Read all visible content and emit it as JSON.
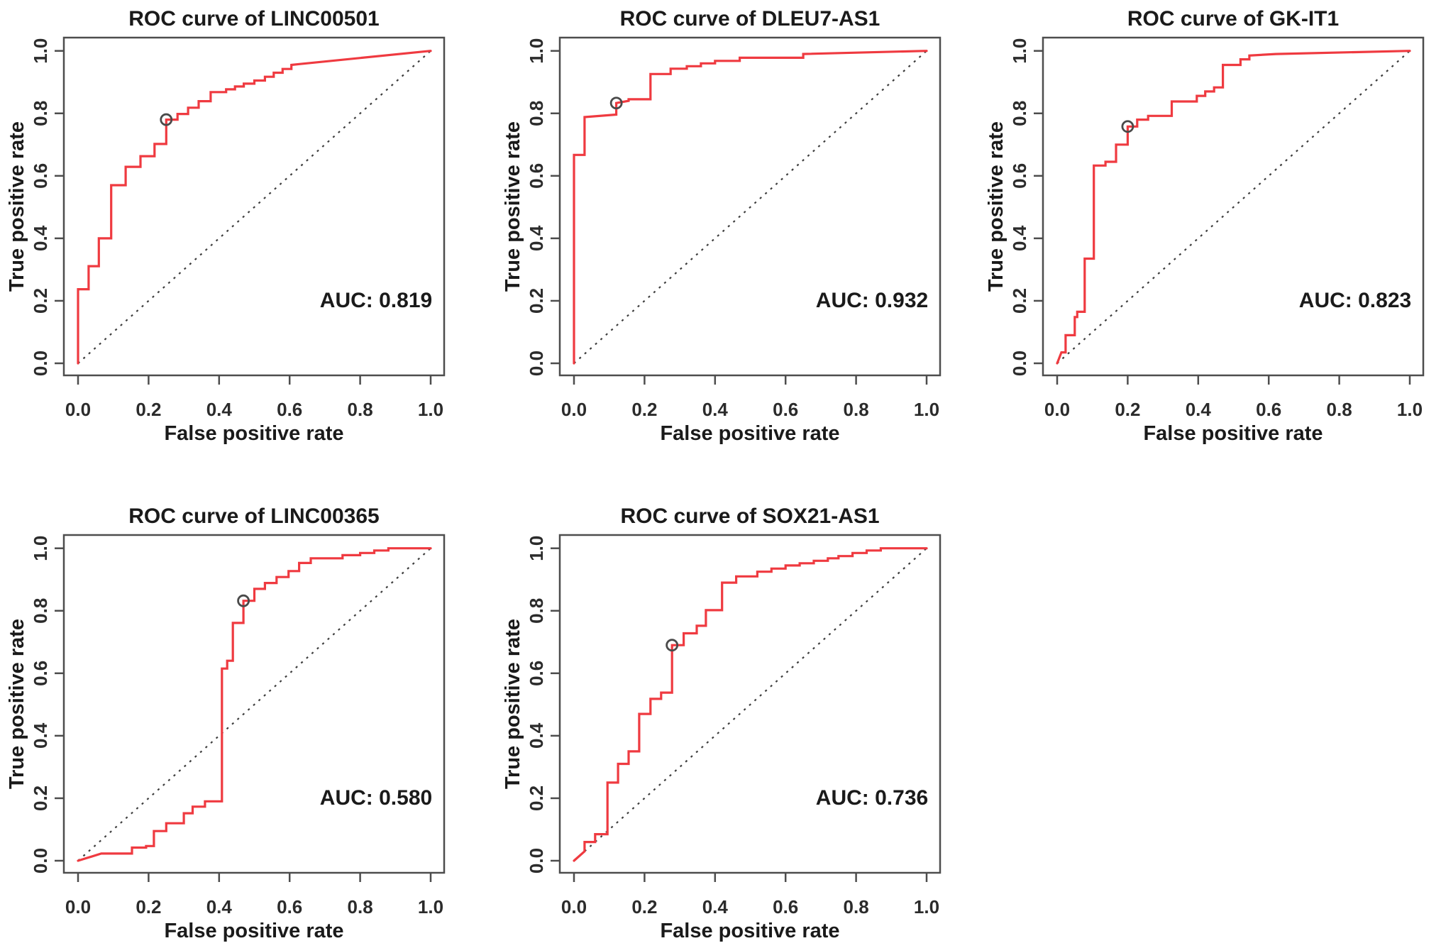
{
  "figure": {
    "description": "Five ROC curve panels arranged in a 2x3 grid (3 top, 2 bottom)",
    "background": "#ffffff",
    "colors": {
      "curve": "#ef3a40",
      "diagonal": "#3d3d3d",
      "frame": "#4d4d4d",
      "marker": "#4a4a4a",
      "text": "#1a1a1a",
      "tick_text": "#2b2b2b"
    }
  },
  "chart_data": [
    {
      "type": "line",
      "subtype": "roc",
      "row": 0,
      "col": 0,
      "title": "ROC curve of LINC00501",
      "xlabel": "False positive rate",
      "ylabel": "True positive rate",
      "auc": 0.819,
      "auc_label": "AUC: 0.819",
      "xlim": [
        0,
        1
      ],
      "ylim": [
        0,
        1
      ],
      "x_ticks": [
        "0.0",
        "0.2",
        "0.4",
        "0.6",
        "0.8",
        "1.0"
      ],
      "y_ticks": [
        "0.0",
        "0.2",
        "0.4",
        "0.6",
        "0.8",
        "1.0"
      ],
      "grid": false,
      "diagonal_reference": true,
      "cutoff_point": [
        0.25,
        0.78
      ],
      "points": [
        [
          0,
          0
        ],
        [
          0,
          0.237
        ],
        [
          0.03,
          0.237
        ],
        [
          0.03,
          0.311
        ],
        [
          0.059,
          0.311
        ],
        [
          0.059,
          0.4
        ],
        [
          0.094,
          0.4
        ],
        [
          0.094,
          0.57
        ],
        [
          0.135,
          0.57
        ],
        [
          0.135,
          0.629
        ],
        [
          0.177,
          0.629
        ],
        [
          0.177,
          0.663
        ],
        [
          0.217,
          0.663
        ],
        [
          0.217,
          0.702
        ],
        [
          0.25,
          0.702
        ],
        [
          0.25,
          0.78
        ],
        [
          0.282,
          0.78
        ],
        [
          0.282,
          0.798
        ],
        [
          0.312,
          0.798
        ],
        [
          0.312,
          0.818
        ],
        [
          0.342,
          0.818
        ],
        [
          0.342,
          0.839
        ],
        [
          0.376,
          0.839
        ],
        [
          0.376,
          0.868
        ],
        [
          0.42,
          0.868
        ],
        [
          0.42,
          0.877
        ],
        [
          0.445,
          0.877
        ],
        [
          0.445,
          0.886
        ],
        [
          0.47,
          0.886
        ],
        [
          0.47,
          0.895
        ],
        [
          0.5,
          0.895
        ],
        [
          0.5,
          0.905
        ],
        [
          0.53,
          0.905
        ],
        [
          0.53,
          0.917
        ],
        [
          0.555,
          0.917
        ],
        [
          0.555,
          0.93
        ],
        [
          0.58,
          0.93
        ],
        [
          0.58,
          0.942
        ],
        [
          0.605,
          0.942
        ],
        [
          0.605,
          0.955
        ],
        [
          0.63,
          0.958
        ],
        [
          1,
          1
        ]
      ]
    },
    {
      "type": "line",
      "subtype": "roc",
      "row": 0,
      "col": 1,
      "title": "ROC curve of DLEU7-AS1",
      "xlabel": "False positive rate",
      "ylabel": "True positive rate",
      "auc": 0.932,
      "auc_label": "AUC: 0.932",
      "xlim": [
        0,
        1
      ],
      "ylim": [
        0,
        1
      ],
      "x_ticks": [
        "0.0",
        "0.2",
        "0.4",
        "0.6",
        "0.8",
        "1.0"
      ],
      "y_ticks": [
        "0.0",
        "0.2",
        "0.4",
        "0.6",
        "0.8",
        "1.0"
      ],
      "grid": false,
      "diagonal_reference": true,
      "cutoff_point": [
        0.12,
        0.833
      ],
      "points": [
        [
          0,
          0
        ],
        [
          0,
          0.667
        ],
        [
          0.03,
          0.667
        ],
        [
          0.03,
          0.788
        ],
        [
          0.12,
          0.796
        ],
        [
          0.12,
          0.833
        ],
        [
          0.155,
          0.84
        ],
        [
          0.155,
          0.845
        ],
        [
          0.217,
          0.845
        ],
        [
          0.217,
          0.926
        ],
        [
          0.274,
          0.926
        ],
        [
          0.274,
          0.943
        ],
        [
          0.32,
          0.943
        ],
        [
          0.32,
          0.951
        ],
        [
          0.36,
          0.951
        ],
        [
          0.36,
          0.96
        ],
        [
          0.4,
          0.96
        ],
        [
          0.4,
          0.968
        ],
        [
          0.47,
          0.968
        ],
        [
          0.47,
          0.978
        ],
        [
          0.65,
          0.978
        ],
        [
          0.65,
          0.99
        ],
        [
          1,
          1
        ]
      ]
    },
    {
      "type": "line",
      "subtype": "roc",
      "row": 0,
      "col": 2,
      "title": "ROC curve of GK-IT1",
      "xlabel": "False positive rate",
      "ylabel": "True positive rate",
      "auc": 0.823,
      "auc_label": "AUC: 0.823",
      "xlim": [
        0,
        1
      ],
      "ylim": [
        0,
        1
      ],
      "x_ticks": [
        "0.0",
        "0.2",
        "0.4",
        "0.6",
        "0.8",
        "1.0"
      ],
      "y_ticks": [
        "0.0",
        "0.2",
        "0.4",
        "0.6",
        "0.8",
        "1.0"
      ],
      "grid": false,
      "diagonal_reference": true,
      "cutoff_point": [
        0.2,
        0.758
      ],
      "points": [
        [
          0,
          0
        ],
        [
          0.012,
          0.035
        ],
        [
          0.024,
          0.035
        ],
        [
          0.024,
          0.09
        ],
        [
          0.05,
          0.09
        ],
        [
          0.05,
          0.148
        ],
        [
          0.057,
          0.148
        ],
        [
          0.057,
          0.165
        ],
        [
          0.078,
          0.165
        ],
        [
          0.078,
          0.335
        ],
        [
          0.104,
          0.335
        ],
        [
          0.104,
          0.633
        ],
        [
          0.137,
          0.633
        ],
        [
          0.137,
          0.645
        ],
        [
          0.167,
          0.645
        ],
        [
          0.167,
          0.7
        ],
        [
          0.2,
          0.7
        ],
        [
          0.2,
          0.758
        ],
        [
          0.227,
          0.758
        ],
        [
          0.227,
          0.78
        ],
        [
          0.258,
          0.78
        ],
        [
          0.258,
          0.792
        ],
        [
          0.325,
          0.792
        ],
        [
          0.325,
          0.838
        ],
        [
          0.396,
          0.838
        ],
        [
          0.396,
          0.856
        ],
        [
          0.42,
          0.856
        ],
        [
          0.42,
          0.87
        ],
        [
          0.445,
          0.87
        ],
        [
          0.445,
          0.883
        ],
        [
          0.47,
          0.883
        ],
        [
          0.47,
          0.955
        ],
        [
          0.52,
          0.955
        ],
        [
          0.52,
          0.973
        ],
        [
          0.545,
          0.973
        ],
        [
          0.545,
          0.985
        ],
        [
          0.62,
          0.99
        ],
        [
          1,
          1
        ]
      ]
    },
    {
      "type": "line",
      "subtype": "roc",
      "row": 1,
      "col": 0,
      "title": "ROC curve of LINC00365",
      "xlabel": "False positive rate",
      "ylabel": "True positive rate",
      "auc": 0.58,
      "auc_label": "AUC: 0.580",
      "xlim": [
        0,
        1
      ],
      "ylim": [
        0,
        1
      ],
      "x_ticks": [
        "0.0",
        "0.2",
        "0.4",
        "0.6",
        "0.8",
        "1.0"
      ],
      "y_ticks": [
        "0.0",
        "0.2",
        "0.4",
        "0.6",
        "0.8",
        "1.0"
      ],
      "grid": false,
      "diagonal_reference": true,
      "cutoff_point": [
        0.469,
        0.832
      ],
      "points": [
        [
          0,
          0
        ],
        [
          0.066,
          0.023
        ],
        [
          0.153,
          0.023
        ],
        [
          0.153,
          0.042
        ],
        [
          0.193,
          0.042
        ],
        [
          0.193,
          0.047
        ],
        [
          0.215,
          0.047
        ],
        [
          0.215,
          0.095
        ],
        [
          0.25,
          0.095
        ],
        [
          0.25,
          0.12
        ],
        [
          0.3,
          0.12
        ],
        [
          0.3,
          0.152
        ],
        [
          0.325,
          0.152
        ],
        [
          0.325,
          0.173
        ],
        [
          0.36,
          0.173
        ],
        [
          0.36,
          0.19
        ],
        [
          0.408,
          0.19
        ],
        [
          0.408,
          0.615
        ],
        [
          0.423,
          0.615
        ],
        [
          0.423,
          0.64
        ],
        [
          0.439,
          0.64
        ],
        [
          0.439,
          0.761
        ],
        [
          0.469,
          0.761
        ],
        [
          0.469,
          0.832
        ],
        [
          0.5,
          0.832
        ],
        [
          0.5,
          0.87
        ],
        [
          0.53,
          0.87
        ],
        [
          0.53,
          0.889
        ],
        [
          0.563,
          0.889
        ],
        [
          0.563,
          0.908
        ],
        [
          0.597,
          0.908
        ],
        [
          0.597,
          0.927
        ],
        [
          0.627,
          0.927
        ],
        [
          0.627,
          0.953
        ],
        [
          0.66,
          0.953
        ],
        [
          0.66,
          0.968
        ],
        [
          0.75,
          0.968
        ],
        [
          0.75,
          0.978
        ],
        [
          0.8,
          0.978
        ],
        [
          0.8,
          0.985
        ],
        [
          0.84,
          0.985
        ],
        [
          0.84,
          0.993
        ],
        [
          0.88,
          0.993
        ],
        [
          0.88,
          1
        ],
        [
          1,
          1
        ]
      ]
    },
    {
      "type": "line",
      "subtype": "roc",
      "row": 1,
      "col": 1,
      "title": "ROC curve of SOX21-AS1",
      "xlabel": "False positive rate",
      "ylabel": "True positive rate",
      "auc": 0.736,
      "auc_label": "AUC: 0.736",
      "xlim": [
        0,
        1
      ],
      "ylim": [
        0,
        1
      ],
      "x_ticks": [
        "0.0",
        "0.2",
        "0.4",
        "0.6",
        "0.8",
        "1.0"
      ],
      "y_ticks": [
        "0.0",
        "0.2",
        "0.4",
        "0.6",
        "0.8",
        "1.0"
      ],
      "grid": false,
      "diagonal_reference": true,
      "cutoff_point": [
        0.278,
        0.69
      ],
      "points": [
        [
          0,
          0
        ],
        [
          0.03,
          0.03
        ],
        [
          0.03,
          0.06
        ],
        [
          0.06,
          0.06
        ],
        [
          0.06,
          0.085
        ],
        [
          0.095,
          0.085
        ],
        [
          0.095,
          0.25
        ],
        [
          0.125,
          0.25
        ],
        [
          0.125,
          0.31
        ],
        [
          0.155,
          0.31
        ],
        [
          0.155,
          0.35
        ],
        [
          0.185,
          0.35
        ],
        [
          0.185,
          0.47
        ],
        [
          0.217,
          0.47
        ],
        [
          0.217,
          0.518
        ],
        [
          0.247,
          0.518
        ],
        [
          0.247,
          0.538
        ],
        [
          0.278,
          0.538
        ],
        [
          0.278,
          0.69
        ],
        [
          0.311,
          0.69
        ],
        [
          0.311,
          0.728
        ],
        [
          0.348,
          0.728
        ],
        [
          0.348,
          0.752
        ],
        [
          0.374,
          0.752
        ],
        [
          0.374,
          0.802
        ],
        [
          0.42,
          0.802
        ],
        [
          0.42,
          0.89
        ],
        [
          0.46,
          0.89
        ],
        [
          0.46,
          0.91
        ],
        [
          0.52,
          0.91
        ],
        [
          0.52,
          0.925
        ],
        [
          0.56,
          0.925
        ],
        [
          0.56,
          0.935
        ],
        [
          0.6,
          0.935
        ],
        [
          0.6,
          0.945
        ],
        [
          0.64,
          0.945
        ],
        [
          0.64,
          0.952
        ],
        [
          0.68,
          0.952
        ],
        [
          0.68,
          0.96
        ],
        [
          0.72,
          0.96
        ],
        [
          0.72,
          0.968
        ],
        [
          0.75,
          0.968
        ],
        [
          0.75,
          0.975
        ],
        [
          0.79,
          0.975
        ],
        [
          0.79,
          0.985
        ],
        [
          0.83,
          0.985
        ],
        [
          0.83,
          0.993
        ],
        [
          0.87,
          0.993
        ],
        [
          0.87,
          1
        ],
        [
          1,
          1
        ]
      ]
    }
  ]
}
